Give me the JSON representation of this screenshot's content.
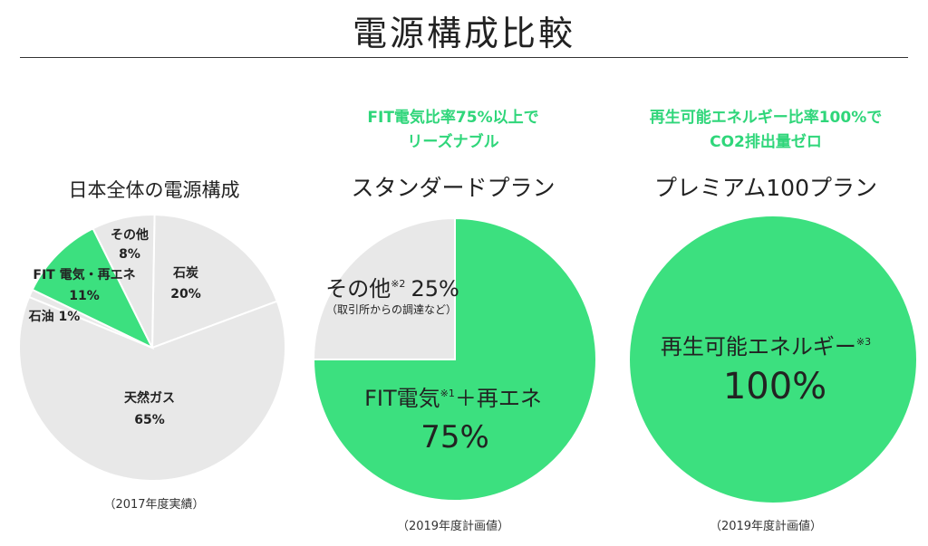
{
  "header": {
    "title": "電源構成比較"
  },
  "colors": {
    "green": "#3ce07f",
    "gray": "#e8e8e8",
    "tagline": "#2fd67a"
  },
  "chart_data": [
    {
      "type": "pie",
      "title": "日本全体の電源構成",
      "note": "（2017年度実績）",
      "slices": [
        {
          "key": "coal",
          "label": "石炭",
          "value": 20,
          "value_label": "20%",
          "color": "gray"
        },
        {
          "key": "lng",
          "label": "天然ガス",
          "value": 65,
          "value_label": "65%",
          "color": "gray"
        },
        {
          "key": "oil",
          "label": "石油",
          "value": 1,
          "value_label": "1%",
          "color": "gray"
        },
        {
          "key": "fit",
          "label": "FIT 電気・再エネ",
          "value": 11,
          "value_label": "11%",
          "color": "green"
        },
        {
          "key": "other",
          "label": "その他",
          "value": 8,
          "value_label": "8%",
          "color": "gray"
        }
      ]
    },
    {
      "type": "pie",
      "tagline": [
        "FIT電気比率75%以上で",
        "リーズナブル"
      ],
      "title": "スタンダードプラン",
      "note": "（2019年度計画値）",
      "slices": [
        {
          "key": "fit",
          "label": "FIT電気",
          "sup": "※1",
          "label_suffix": "＋再エネ",
          "value": 75,
          "value_label": "75%",
          "color": "green"
        },
        {
          "key": "other",
          "label": "その他",
          "sup": "※2",
          "value": 25,
          "value_label": "25%",
          "sublabel": "（取引所からの調達など）",
          "color": "gray"
        }
      ]
    },
    {
      "type": "pie",
      "tagline": [
        "再生可能エネルギー比率100%で",
        "CO2排出量ゼロ"
      ],
      "title": "プレミアム100プラン",
      "note": "（2019年度計画値）",
      "slices": [
        {
          "key": "renewable",
          "label": "再生可能エネルギー",
          "sup": "※3",
          "value": 100,
          "value_label": "100%",
          "color": "green"
        }
      ]
    }
  ]
}
